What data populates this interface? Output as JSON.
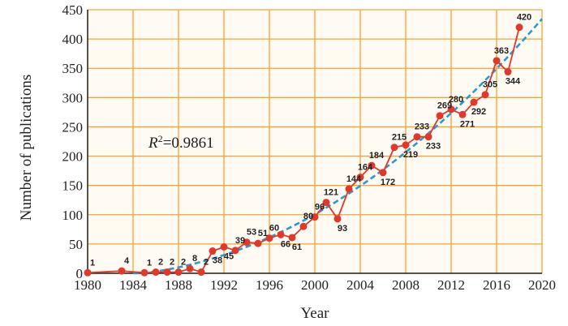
{
  "chart_data": {
    "type": "line",
    "xlabel": "Year",
    "ylabel": "Number of publications",
    "xlim": [
      1980,
      2020
    ],
    "ylim": [
      0,
      450
    ],
    "x_ticks": [
      "1980",
      "1984",
      "1988",
      "1992",
      "1996",
      "2000",
      "2004",
      "2008",
      "2012",
      "2016",
      "2020"
    ],
    "y_ticks": [
      "0",
      "50",
      "100",
      "150",
      "200",
      "250",
      "300",
      "350",
      "400",
      "450"
    ],
    "grid": true,
    "annotation": {
      "r_symbol": "R",
      "superscript": "2",
      "value": "=0.9861"
    },
    "series": [
      {
        "name": "Number of publications",
        "color": "#e0392b",
        "x": [
          1980,
          1983,
          1985,
          1986,
          1987,
          1988,
          1989,
          1990,
          1991,
          1992,
          1993,
          1994,
          1995,
          1996,
          1997,
          1998,
          1999,
          2000,
          2001,
          2002,
          2003,
          2004,
          2005,
          2006,
          2007,
          2008,
          2009,
          2010,
          2011,
          2012,
          2013,
          2014,
          2015,
          2016,
          2017,
          2018
        ],
        "values": [
          1,
          4,
          1,
          2,
          2,
          2,
          8,
          2,
          38,
          45,
          39,
          53,
          51,
          60,
          66,
          61,
          80,
          96,
          121,
          93,
          144,
          164,
          184,
          172,
          215,
          219,
          233,
          233,
          269,
          280,
          271,
          292,
          305,
          363,
          344,
          420
        ]
      }
    ],
    "trendline": {
      "name": "Fit",
      "color": "#2a9ad0",
      "style": "dashed"
    }
  }
}
